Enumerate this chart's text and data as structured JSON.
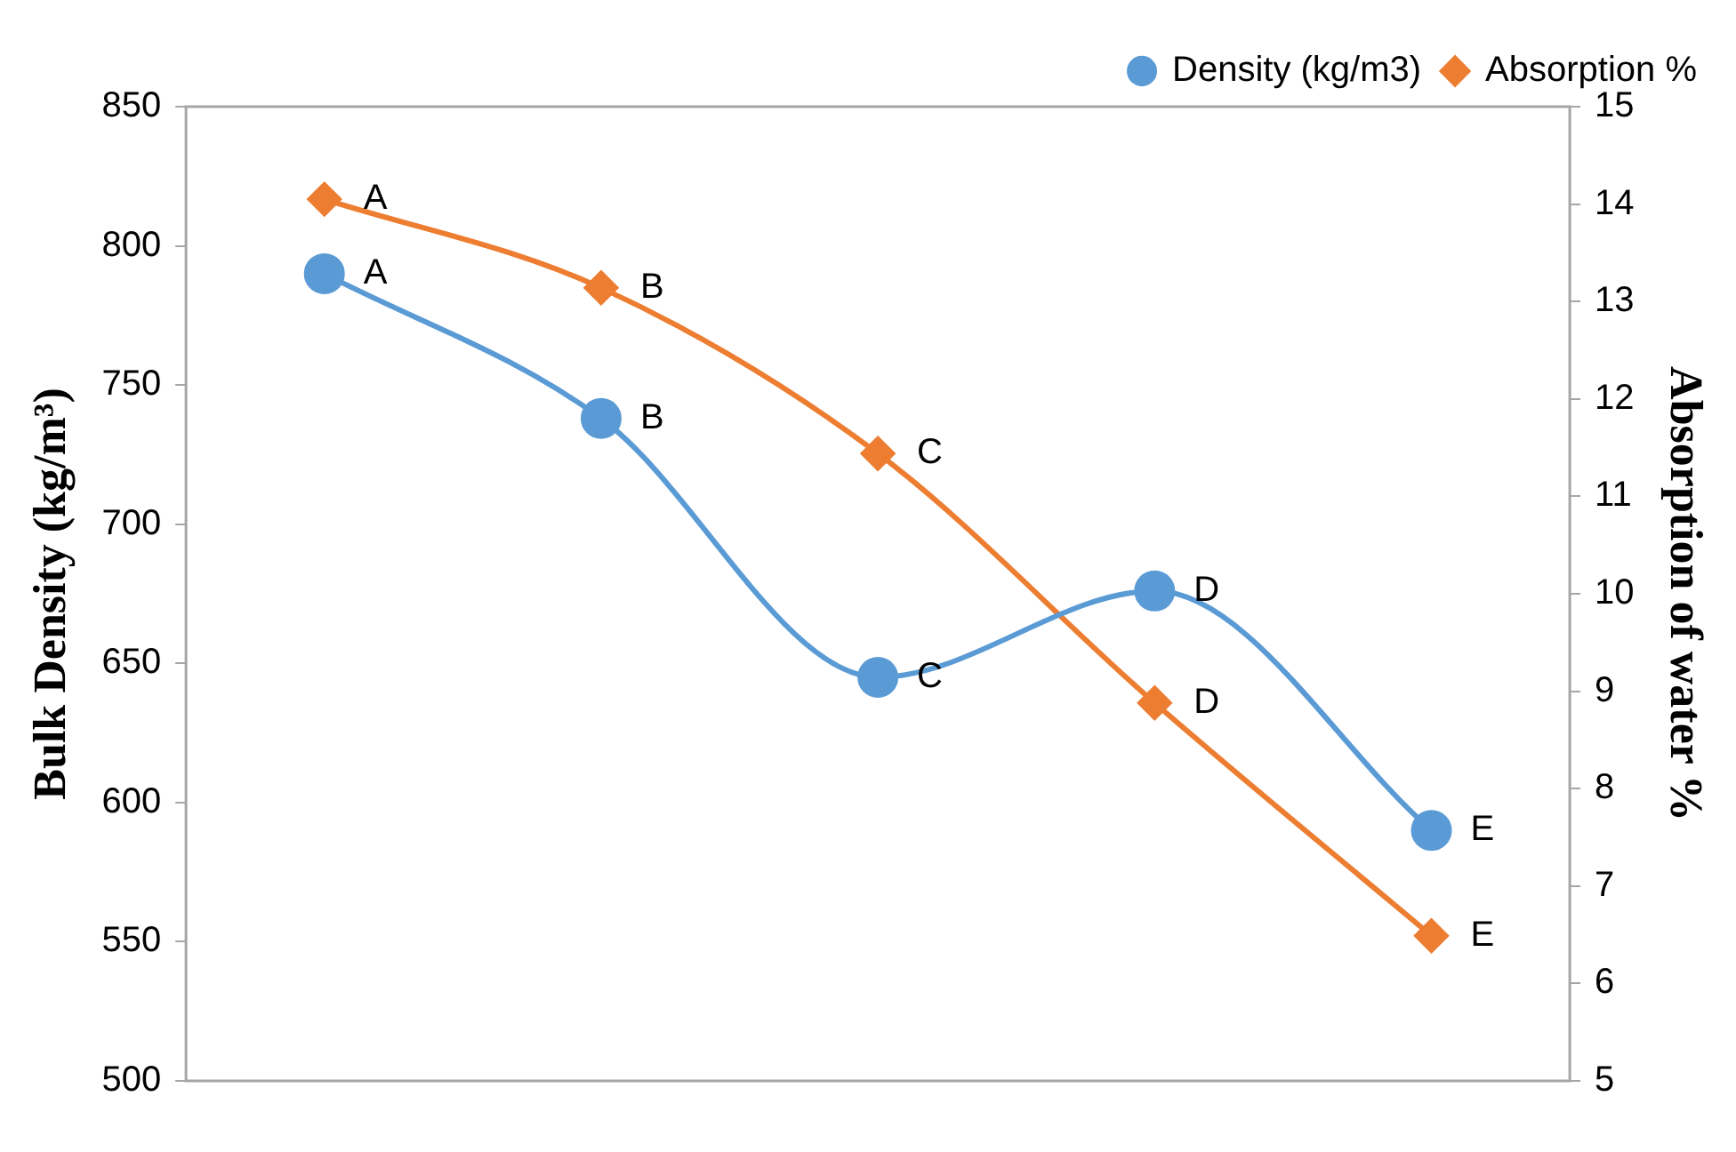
{
  "chart_data": {
    "type": "line",
    "ylabel": "Bulk Density (kg/m³)",
    "y2label": "Absorption of water %",
    "categories": [
      null,
      null,
      null,
      null,
      null
    ],
    "series": [
      {
        "name": "Density (kg/m3)",
        "color": "#5b9bd5",
        "marker": "circle",
        "values": [
          790,
          738,
          645,
          676,
          590
        ],
        "value_labels": [
          "A",
          "B",
          "C",
          "D",
          "E"
        ]
      },
      {
        "name": "Absorption %",
        "color": "#ed7d31",
        "marker": "diamond",
        "axis": "y2",
        "values": [
          14.05,
          13.14,
          11.44,
          8.88,
          6.49
        ],
        "value_labels": [
          "A",
          "B",
          "C",
          "D",
          "E"
        ]
      }
    ],
    "ylim": [
      500,
      850
    ],
    "yticks": [
      500,
      550,
      600,
      650,
      700,
      750,
      800,
      850
    ],
    "y2lim": [
      5,
      15
    ],
    "y2ticks": [
      5,
      6,
      7,
      8,
      9,
      10,
      11,
      12,
      13,
      14,
      15
    ],
    "legend": "top right",
    "grid": false
  }
}
